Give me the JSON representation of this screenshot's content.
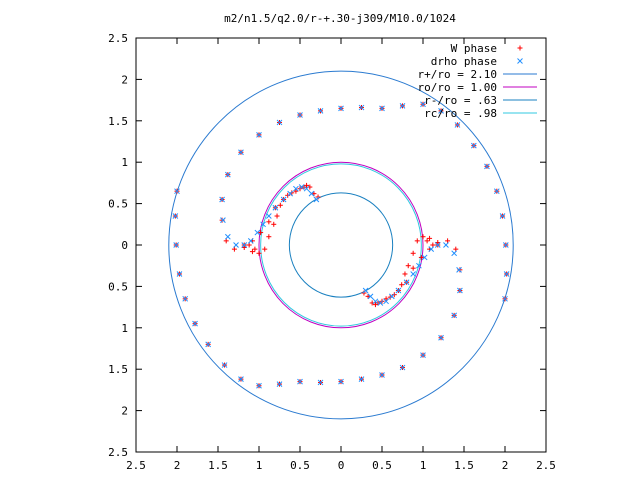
{
  "chart_data": {
    "type": "scatter",
    "title": "m2/n1.5/q2.0/r-+.30-j309/M10.0/1024",
    "xlabel": "",
    "ylabel": "",
    "xlim": [
      -2.5,
      2.5
    ],
    "ylim": [
      -2.5,
      2.5
    ],
    "x_ticks": [
      -2.5,
      -2,
      -1.5,
      -1,
      -0.5,
      0,
      0.5,
      1,
      1.5,
      2,
      2.5
    ],
    "x_tick_labels": [
      "2.5",
      "2",
      "1.5",
      "1",
      "0.5",
      "0",
      "0.5",
      "1",
      "1.5",
      "2",
      "2.5"
    ],
    "y_ticks": [
      2.5,
      2,
      1.5,
      1,
      0.5,
      0,
      -0.5,
      -1,
      -1.5,
      -2,
      -2.5
    ],
    "y_tick_labels": [
      "2.5",
      "2",
      "1.5",
      "1",
      "0.5",
      "0",
      "0.5",
      "1",
      "1.5",
      "2",
      "2.5"
    ],
    "grid": false,
    "legend_position": "top-right",
    "series": [
      {
        "name": "W phase",
        "marker": "+",
        "color": "#ff0000",
        "x": [
          -2.0,
          -2.02,
          -2.01,
          -1.97,
          -1.9,
          -1.78,
          -1.62,
          -1.42,
          -1.22,
          -1.0,
          -0.75,
          -0.5,
          -0.25,
          0.0,
          0.25,
          0.5,
          0.75,
          1.0,
          1.22,
          1.38,
          1.45,
          1.45,
          1.4,
          1.3,
          1.18,
          1.08,
          0.98,
          0.88,
          0.8,
          2.0,
          2.02,
          2.01,
          1.97,
          1.9,
          1.78,
          1.62,
          1.42,
          1.22,
          1.0,
          0.75,
          0.5,
          0.25,
          0.0,
          -0.25,
          -0.5,
          -0.75,
          -1.0,
          -1.22,
          -1.38,
          -1.45,
          -1.45,
          -1.4,
          -1.3,
          -1.18,
          -1.08,
          -0.98,
          -0.88,
          -0.8,
          -1.18,
          -1.08,
          -1.0,
          -0.93,
          -0.88,
          -0.82,
          -0.78,
          -0.74,
          -0.7,
          -0.65,
          -0.6,
          -0.55,
          -0.5,
          -0.45,
          -0.42,
          -0.38,
          -0.33,
          -0.28,
          1.18,
          1.08,
          1.0,
          0.93,
          0.88,
          0.82,
          0.78,
          0.74,
          0.7,
          0.65,
          0.6,
          0.55,
          0.5,
          0.45,
          0.42,
          0.38,
          0.33,
          0.28,
          1.05,
          1.12,
          -1.05,
          -1.12
        ],
        "y": [
          0.65,
          0.35,
          0.0,
          -0.35,
          -0.65,
          -0.95,
          -1.2,
          -1.45,
          -1.62,
          -1.7,
          -1.68,
          -1.65,
          -1.66,
          -1.65,
          -1.62,
          -1.57,
          -1.48,
          -1.33,
          -1.12,
          -0.85,
          -0.55,
          -0.3,
          -0.05,
          0.05,
          0.03,
          -0.05,
          -0.15,
          -0.28,
          -0.45,
          -0.65,
          -0.35,
          0.0,
          0.35,
          0.65,
          0.95,
          1.2,
          1.45,
          1.62,
          1.7,
          1.68,
          1.65,
          1.66,
          1.65,
          1.62,
          1.57,
          1.48,
          1.33,
          1.12,
          0.85,
          0.55,
          0.3,
          0.05,
          -0.05,
          -0.03,
          0.05,
          0.15,
          0.28,
          0.45,
          0.0,
          -0.08,
          -0.1,
          -0.05,
          0.1,
          0.25,
          0.35,
          0.48,
          0.55,
          0.6,
          0.63,
          0.65,
          0.68,
          0.7,
          0.72,
          0.7,
          0.62,
          0.58,
          0.0,
          0.08,
          0.1,
          0.05,
          -0.1,
          -0.25,
          -0.35,
          -0.48,
          -0.55,
          -0.6,
          -0.63,
          -0.65,
          -0.68,
          -0.7,
          -0.72,
          -0.7,
          -0.62,
          -0.58,
          0.05,
          0.0,
          -0.05,
          0.0
        ]
      },
      {
        "name": "drho phase",
        "marker": "x",
        "color": "#2090ff",
        "x": [
          -2.0,
          -2.02,
          -2.01,
          -1.97,
          -1.9,
          -1.78,
          -1.62,
          -1.42,
          -1.22,
          -1.0,
          -0.75,
          -0.5,
          -0.25,
          0.0,
          0.25,
          0.5,
          0.75,
          1.0,
          1.22,
          1.38,
          1.45,
          1.44,
          1.38,
          1.28,
          1.18,
          1.1,
          1.02,
          0.95,
          0.88,
          0.8,
          2.0,
          2.02,
          2.01,
          1.97,
          1.9,
          1.78,
          1.62,
          1.42,
          1.22,
          1.0,
          0.75,
          0.5,
          0.25,
          0.0,
          -0.25,
          -0.5,
          -0.75,
          -1.0,
          -1.22,
          -1.38,
          -1.45,
          -1.44,
          -1.38,
          -1.28,
          -1.18,
          -1.1,
          -1.02,
          -0.95,
          -0.88,
          -0.8,
          -0.7,
          -0.62,
          -0.55,
          -0.48,
          -0.42,
          -0.36,
          -0.3,
          0.7,
          0.62,
          0.55,
          0.48,
          0.42,
          0.36,
          0.3
        ],
        "y": [
          0.65,
          0.35,
          0.0,
          -0.35,
          -0.65,
          -0.95,
          -1.2,
          -1.45,
          -1.62,
          -1.7,
          -1.68,
          -1.65,
          -1.66,
          -1.65,
          -1.62,
          -1.57,
          -1.48,
          -1.33,
          -1.12,
          -0.85,
          -0.55,
          -0.3,
          -0.1,
          0.0,
          0.0,
          -0.05,
          -0.15,
          -0.25,
          -0.35,
          -0.45,
          -0.65,
          -0.35,
          0.0,
          0.35,
          0.65,
          0.95,
          1.2,
          1.45,
          1.62,
          1.7,
          1.68,
          1.65,
          1.66,
          1.65,
          1.62,
          1.57,
          1.48,
          1.33,
          1.12,
          0.85,
          0.55,
          0.3,
          0.1,
          0.0,
          0.0,
          0.05,
          0.15,
          0.25,
          0.35,
          0.45,
          0.55,
          0.62,
          0.68,
          0.7,
          0.68,
          0.62,
          0.55,
          -0.55,
          -0.62,
          -0.68,
          -0.7,
          -0.68,
          -0.62,
          -0.55
        ]
      },
      {
        "name": "r+/ro = 2.10",
        "type": "circle",
        "radius": 2.1,
        "color": "#2a7ad0"
      },
      {
        "name": "ro/ro = 1.00",
        "type": "circle",
        "radius": 1.0,
        "color": "#c000c0"
      },
      {
        "name": "r-/ro = .63",
        "type": "circle",
        "radius": 0.63,
        "color": "#1a80c0"
      },
      {
        "name": "rc/ro = .98",
        "type": "circle",
        "radius": 0.98,
        "color": "#30c8e0"
      }
    ]
  }
}
